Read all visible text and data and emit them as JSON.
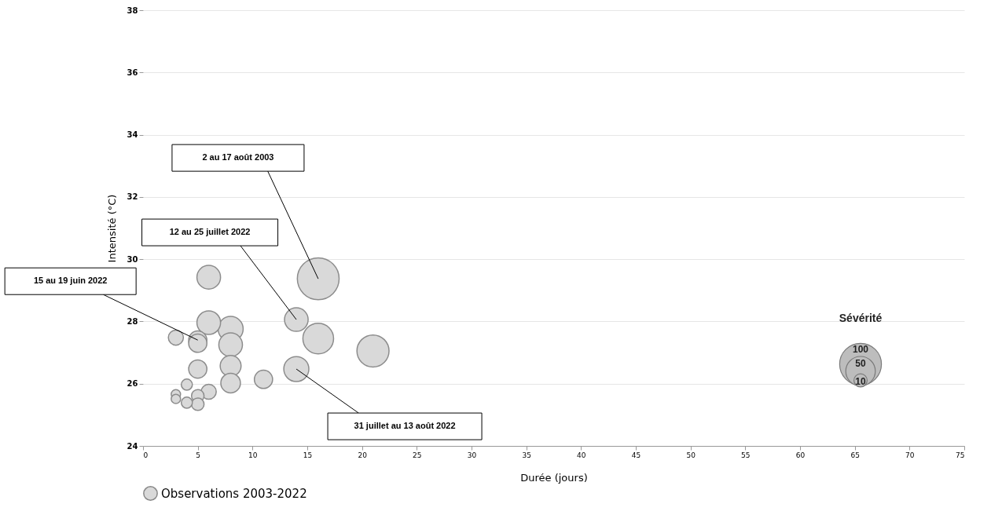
{
  "chart_data": {
    "type": "bubble",
    "xlabel": "Durée  (jours)",
    "ylabel": "Intensité  (°C)",
    "x": [
      6,
      16,
      6,
      8,
      3,
      5,
      5,
      8,
      14,
      16,
      21,
      5,
      8,
      8,
      11,
      14,
      4,
      6,
      3,
      3,
      5,
      4,
      5
    ],
    "series": [
      {
        "name": "Observations 2003-2022",
        "color": "#d9d9d9",
        "values": [
          29.42,
          29.37,
          27.96,
          27.76,
          27.48,
          27.4,
          27.3,
          27.25,
          28.06,
          27.45,
          27.05,
          26.47,
          26.57,
          26.02,
          26.14,
          26.47,
          25.97,
          25.74,
          25.66,
          25.51,
          25.61,
          25.39,
          25.34
        ],
        "sizes": [
          32,
          100,
          32,
          36,
          13,
          19,
          19,
          32,
          32,
          54,
          59,
          19,
          25,
          22,
          19,
          36,
          7,
          13,
          5,
          5,
          9,
          7,
          9
        ]
      }
    ],
    "size_legend": [
      100,
      50,
      10
    ],
    "legend_title": "Sévérité",
    "annotations": [
      {
        "text": "2 au 17 août 2003",
        "x": 16,
        "y": 29.37
      },
      {
        "text": "12 au 25 juillet 2022",
        "x": 14,
        "y": 28.06
      },
      {
        "text": "15 au 19 juin 2022",
        "x": 5,
        "y": 27.4
      },
      {
        "text": "31 juillet au 13 août 2022",
        "x": 14,
        "y": 26.47
      }
    ],
    "xlim": [
      0,
      75
    ],
    "xticks": [
      0,
      5,
      10,
      15,
      20,
      25,
      30,
      35,
      40,
      45,
      50,
      55,
      60,
      65,
      70,
      75
    ],
    "ylim": [
      24,
      38
    ],
    "yticks": [
      24,
      26,
      28,
      30,
      32,
      34,
      36,
      38
    ],
    "grid": "y",
    "legend": "bottom"
  }
}
